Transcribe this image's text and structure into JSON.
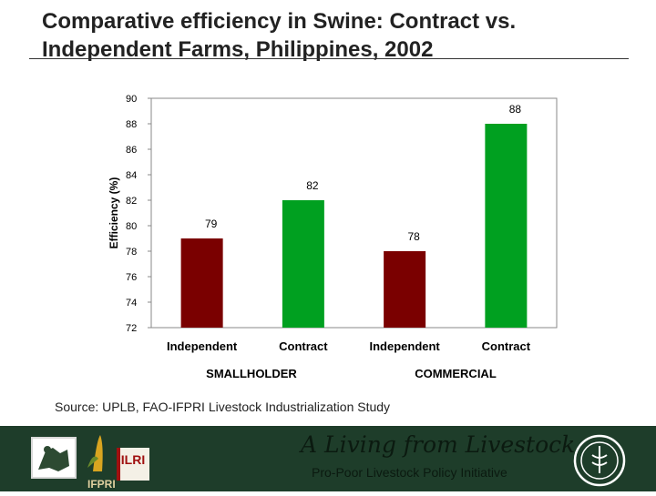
{
  "slide": {
    "title": "Comparative efficiency in Swine: Contract vs. Independent Farms, Philippines, 2002",
    "source": "Source: UPLB, FAO-IFPRI Livestock Industrialization Study"
  },
  "footer": {
    "tagline": "A Living from Livestock",
    "initiative": "Pro-Poor Livestock Policy Initiative",
    "logos": [
      "ifpri-logo",
      "ilri-logo",
      "fao-logo"
    ]
  },
  "colors": {
    "contract": "#00a020",
    "independent": "#7a0000"
  },
  "chart_data": {
    "type": "bar",
    "ylabel": "Efficiency (%)",
    "xlabel": "",
    "ylim": [
      72,
      90
    ],
    "yticks": [
      90,
      88,
      86,
      84,
      82,
      80,
      78,
      76,
      74,
      72
    ],
    "categories": [
      "Independent",
      "Contract",
      "Independent",
      "Contract"
    ],
    "groups": [
      "SMALLHOLDER",
      "COMMERCIAL"
    ],
    "values": [
      79,
      82,
      78,
      88
    ],
    "bar_types": [
      "independent",
      "contract",
      "independent",
      "contract"
    ]
  }
}
